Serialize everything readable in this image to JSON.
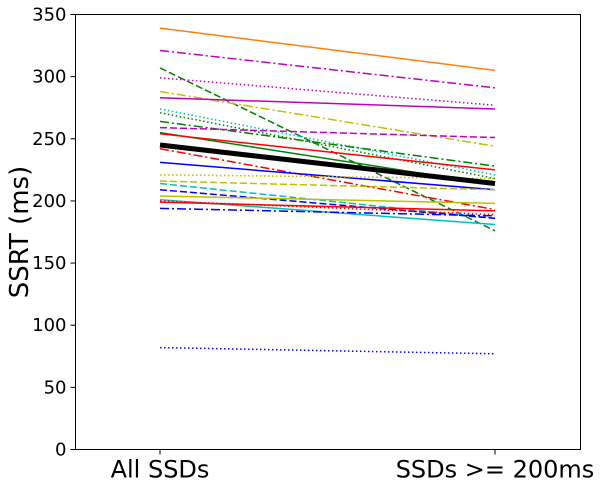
{
  "chart_data": {
    "type": "line",
    "title": "",
    "xlabel": "",
    "ylabel": "SSRT (ms)",
    "categories": [
      "All SSDs",
      "SSDs >= 200ms"
    ],
    "ylim": [
      0,
      350
    ],
    "yticks": [
      0,
      50,
      100,
      150,
      200,
      250,
      300,
      350
    ],
    "grid": false,
    "series": [
      {
        "values": [
          339,
          305
        ],
        "color": "#ff7f0e",
        "style": "solid"
      },
      {
        "values": [
          321,
          291
        ],
        "color": "#bf00bf",
        "style": "dashdot"
      },
      {
        "values": [
          307,
          176
        ],
        "color": "#008000",
        "style": "dashed"
      },
      {
        "values": [
          299,
          277
        ],
        "color": "#bf00bf",
        "style": "dotted"
      },
      {
        "values": [
          288,
          244
        ],
        "color": "#bfbf00",
        "style": "dashdot"
      },
      {
        "values": [
          283,
          274
        ],
        "color": "#bf00bf",
        "style": "solid"
      },
      {
        "values": [
          274,
          221
        ],
        "color": "#00bfbf",
        "style": "dotted"
      },
      {
        "values": [
          271,
          218
        ],
        "color": "#008000",
        "style": "dotted"
      },
      {
        "values": [
          264,
          228
        ],
        "color": "#008000",
        "style": "dashdot"
      },
      {
        "values": [
          259,
          251
        ],
        "color": "#bf00bf",
        "style": "dashed"
      },
      {
        "values": [
          255,
          213
        ],
        "color": "#008000",
        "style": "solid"
      },
      {
        "values": [
          254,
          225
        ],
        "color": "#ff0000",
        "style": "solid"
      },
      {
        "values": [
          242,
          193
        ],
        "color": "#ff0000",
        "style": "dashdot"
      },
      {
        "values": [
          231,
          209
        ],
        "color": "#0000ff",
        "style": "solid"
      },
      {
        "values": [
          221,
          218
        ],
        "color": "#bfbf00",
        "style": "dotted"
      },
      {
        "values": [
          216,
          209
        ],
        "color": "#bfbf00",
        "style": "dashed"
      },
      {
        "values": [
          214,
          186
        ],
        "color": "#00bfbf",
        "style": "dashed"
      },
      {
        "values": [
          209,
          186
        ],
        "color": "#0000ff",
        "style": "dashed"
      },
      {
        "values": [
          204,
          198
        ],
        "color": "#bfbf00",
        "style": "solid"
      },
      {
        "values": [
          201,
          181
        ],
        "color": "#00bfbf",
        "style": "solid"
      },
      {
        "values": [
          200,
          189
        ],
        "color": "#ff0000",
        "style": "dotted"
      },
      {
        "values": [
          199,
          192
        ],
        "color": "#ff0000",
        "style": "solid"
      },
      {
        "values": [
          194,
          188
        ],
        "color": "#0000ff",
        "style": "dashdot"
      },
      {
        "values": [
          82,
          77
        ],
        "color": "#0000ff",
        "style": "dotted"
      },
      {
        "values": [
          245,
          214
        ],
        "color": "#000000",
        "style": "solid",
        "bold": true
      }
    ]
  }
}
